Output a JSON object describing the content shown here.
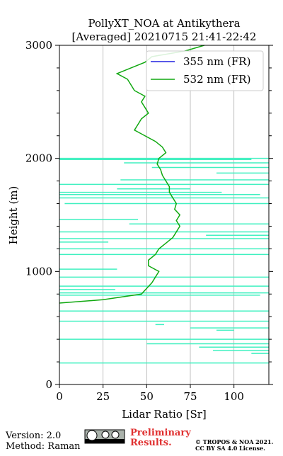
{
  "chart_data": {
    "type": "profile",
    "title": [
      "PollyXT_NOA at Antikythera",
      "[Averaged] 20210715 21:41-22:42"
    ],
    "x_label": "Lidar Ratio [Sr]",
    "y_label": "Height (m)",
    "xlim": [
      0,
      120
    ],
    "xticks": [
      0,
      25,
      50,
      75,
      100
    ],
    "ylim": [
      0,
      3000
    ],
    "yticks": [
      0,
      1000,
      2000,
      3000
    ],
    "yminorticks": [
      200,
      400,
      600,
      800,
      1200,
      1400,
      1600,
      1800,
      2200,
      2400,
      2600,
      2800
    ],
    "grid": "x",
    "legend": "upper right",
    "heights": [
      720,
      750,
      800,
      850,
      900,
      950,
      1000,
      1050,
      1100,
      1150,
      1200,
      1250,
      1300,
      1350,
      1400,
      1450,
      1500,
      1550,
      1600,
      1650,
      1700,
      1750,
      1800,
      1850,
      1900,
      1950,
      2000,
      2050,
      2100,
      2150,
      2200,
      2250,
      2300,
      2350,
      2400,
      2450,
      2500,
      2550,
      2600,
      2650,
      2700,
      2750,
      2800,
      2850,
      2900,
      2950,
      3000
    ],
    "series": [
      {
        "name": "355 nm (FR)",
        "color": "#2020e0",
        "values": [
          null,
          null,
          null,
          null,
          null,
          null,
          null,
          null,
          null,
          null,
          null,
          null,
          null,
          null,
          null,
          null,
          null,
          null,
          null,
          null,
          null,
          null,
          null,
          null,
          null,
          null,
          null,
          null,
          null,
          null,
          null,
          null,
          null,
          null,
          null,
          null,
          null,
          null,
          null,
          null,
          null,
          null,
          null,
          null,
          null,
          null,
          null
        ]
      },
      {
        "name": "532 nm (FR)",
        "color": "#10a810",
        "values": [
          0,
          25,
          47,
          50,
          53,
          55,
          57,
          51,
          51,
          55,
          57,
          61,
          65,
          67,
          69,
          67,
          69,
          66,
          67,
          65,
          63,
          63,
          61,
          59,
          58,
          56,
          57,
          61,
          59,
          55,
          49,
          43,
          45,
          47,
          51,
          49,
          47,
          49,
          43,
          41,
          39,
          33,
          41,
          49,
          53,
          72,
          83
        ]
      }
    ],
    "error_bars": {
      "color": "#40f0c0",
      "heights": [
        2000,
        1990,
        1960,
        1920,
        1870,
        1810,
        1770,
        1730,
        1700,
        1680,
        1650,
        1600,
        1460,
        1420,
        1350,
        1320,
        1290,
        1260,
        1200,
        1150,
        1020,
        950,
        870,
        840,
        810,
        790,
        650,
        560,
        530,
        500,
        480,
        400,
        360,
        330,
        300,
        275,
        190
      ],
      "low": [
        0,
        0,
        37,
        53,
        90,
        35,
        0,
        33,
        0,
        0,
        0,
        3,
        0,
        40,
        0,
        84,
        0,
        0,
        0,
        0,
        0,
        0,
        0,
        0,
        0,
        0,
        0,
        0,
        55,
        75,
        90,
        0,
        50,
        80,
        88,
        110,
        0
      ],
      "high": [
        120,
        110,
        120,
        120,
        120,
        120,
        120,
        75,
        93,
        115,
        120,
        120,
        45,
        120,
        120,
        120,
        120,
        28,
        120,
        120,
        33,
        120,
        120,
        32,
        120,
        115,
        120,
        120,
        60,
        120,
        100,
        120,
        120,
        120,
        120,
        120,
        120
      ]
    }
  },
  "footer": {
    "version": "Version: 2.0",
    "method": "Method: Raman",
    "status": [
      "Preliminary",
      "Results."
    ],
    "copyright": [
      "© TROPOS & NOA 2021.",
      "CC BY SA 4.0 License."
    ]
  }
}
